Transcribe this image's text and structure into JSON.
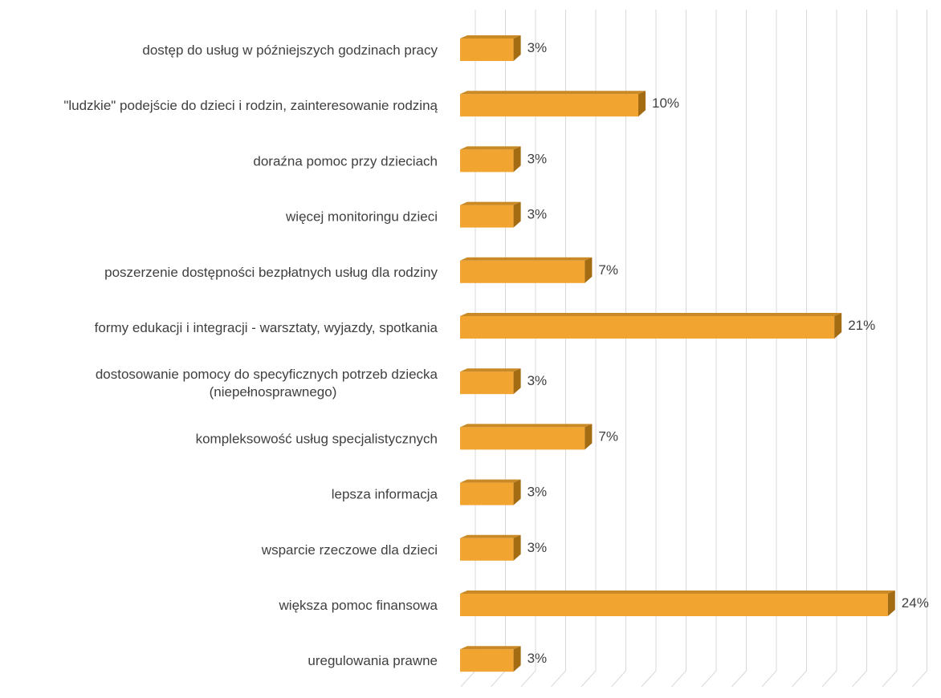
{
  "chart_data": {
    "type": "bar",
    "orientation": "horizontal",
    "style": "3d",
    "title": "",
    "xlabel": "",
    "ylabel": "",
    "xlim": [
      0,
      26
    ],
    "grid": true,
    "legend": "none",
    "bar_color": "#f2a431",
    "bar_top_color": "#c98a25",
    "bar_side_color": "#a36b12",
    "categories": [
      [
        "dostęp do usług w późniejszych godzinach pracy"
      ],
      [
        "\"ludzkie\" podejście do dzieci i rodzin, zainteresowanie rodziną"
      ],
      [
        "doraźna pomoc przy dzieciach"
      ],
      [
        "więcej monitoringu dzieci"
      ],
      [
        "poszerzenie dostępności bezpłatnych usług dla rodziny"
      ],
      [
        "formy edukacji i integracji - warsztaty, wyjazdy, spotkania"
      ],
      [
        "dostosowanie pomocy do specyficznych potrzeb dziecka",
        "(niepełnosprawnego)"
      ],
      [
        "kompleksowość usług specjalistycznych"
      ],
      [
        "lepsza informacja"
      ],
      [
        "wsparcie rzeczowe dla dzieci"
      ],
      [
        "większa pomoc finansowa"
      ],
      [
        "uregulowania prawne"
      ]
    ],
    "values": [
      3,
      10,
      3,
      3,
      7,
      21,
      3,
      7,
      3,
      3,
      24,
      3
    ],
    "value_labels": [
      "3%",
      "10%",
      "3%",
      "3%",
      "7%",
      "21%",
      "3%",
      "7%",
      "3%",
      "3%",
      "24%",
      "3%"
    ]
  }
}
